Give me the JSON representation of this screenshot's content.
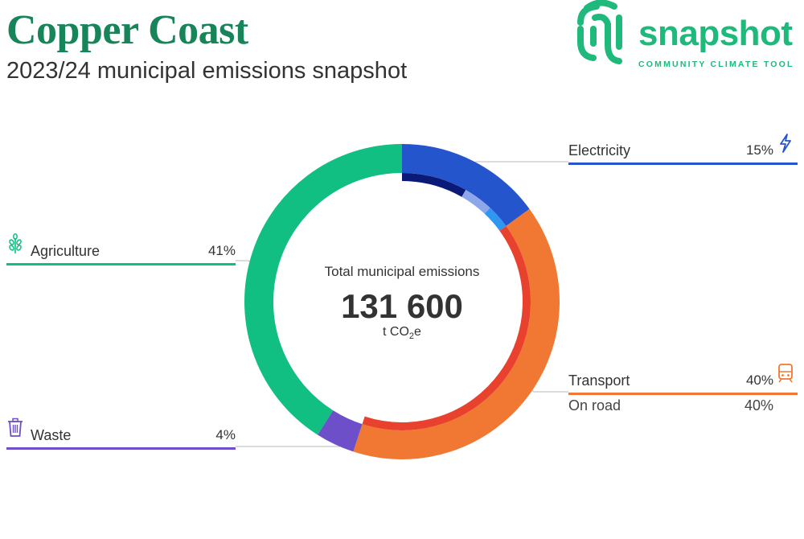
{
  "header": {
    "title": "Copper Coast",
    "subtitle": "2023/24 municipal emissions snapshot"
  },
  "logo": {
    "word": "snapshot",
    "tagline": "COMMUNITY CLIMATE TOOL"
  },
  "center": {
    "title": "Total municipal emissions",
    "value": "131 600",
    "unit_prefix": "t CO",
    "unit_sub": "2",
    "unit_suffix": "e"
  },
  "chart_data": {
    "type": "pie",
    "total": 131600,
    "unit": "t CO2e",
    "slices": [
      {
        "name": "Electricity",
        "value": 15,
        "color": "#2555cc",
        "icon": "lightning-icon"
      },
      {
        "name": "Transport",
        "value": 40,
        "color": "#f07832",
        "icon": "train-icon",
        "sub": [
          {
            "name": "On road",
            "value": 40
          }
        ]
      },
      {
        "name": "Waste",
        "value": 4,
        "color": "#6c4fc9",
        "icon": "trash-icon"
      },
      {
        "name": "Agriculture",
        "value": 41,
        "color": "#12bf82",
        "icon": "wheat-icon"
      }
    ],
    "inner_ring": [
      {
        "parent": "Electricity",
        "color": "#0b1a77",
        "share": 0.55
      },
      {
        "parent": "Electricity",
        "color": "#8ea6ea",
        "share": 0.25
      },
      {
        "parent": "Electricity",
        "color": "#2f97f0",
        "share": 0.2
      },
      {
        "parent": "Transport",
        "color": "#e8412e",
        "share": 1.0
      }
    ]
  }
}
